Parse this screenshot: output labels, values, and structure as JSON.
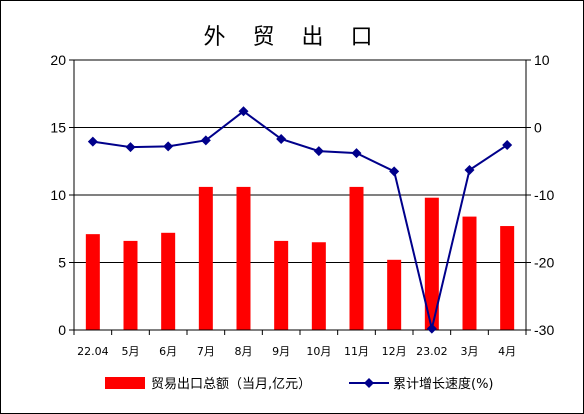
{
  "chart_data": {
    "type": "bar+line",
    "title": "外 贸 出 口",
    "categories": [
      "22.04",
      "5月",
      "6月",
      "7月",
      "8月",
      "9月",
      "10月",
      "11月",
      "12月",
      "23.02",
      "3月",
      "4月"
    ],
    "series": [
      {
        "name": "贸易出口总额（当月,亿元）",
        "type": "bar",
        "axis": "left",
        "color": "#ff0000",
        "values": [
          7.1,
          6.6,
          7.2,
          10.6,
          10.6,
          6.6,
          6.5,
          10.6,
          5.2,
          9.8,
          8.4,
          7.7
        ]
      },
      {
        "name": "累计增长速度(%)",
        "type": "line",
        "axis": "right",
        "color": "#00008b",
        "marker": "diamond",
        "values": [
          -2.1,
          -2.9,
          -2.8,
          -1.9,
          2.4,
          -1.7,
          -3.5,
          -3.8,
          -6.5,
          -29.8,
          -6.3,
          -2.6
        ]
      }
    ],
    "y_left": {
      "min": 0,
      "max": 20,
      "step": 5,
      "ticks": [
        "0",
        "5",
        "10",
        "15",
        "20"
      ]
    },
    "y_right": {
      "min": -30,
      "max": 10,
      "step": 10,
      "ticks": [
        "-30",
        "-20",
        "-10",
        "0",
        "10"
      ]
    },
    "grid": true,
    "legend_position": "bottom"
  }
}
